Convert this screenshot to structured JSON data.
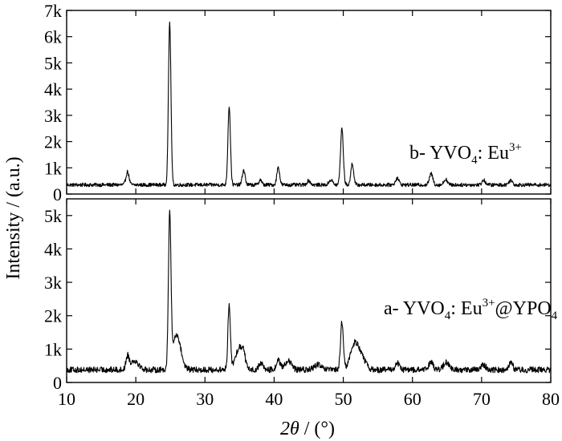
{
  "chart_data": {
    "type": "line",
    "xlabel": {
      "theta": "2θ",
      "rest": " / (°)"
    },
    "ylabel": "Intensity / (a.u.)",
    "xlim": [
      10,
      80
    ],
    "xticks": [
      10,
      20,
      30,
      40,
      50,
      60,
      70,
      80
    ],
    "xtick_labels": [
      "10",
      "20",
      "30",
      "40",
      "50",
      "60",
      "70",
      "80"
    ],
    "panels": [
      {
        "id": "top",
        "ylim": [
          0,
          7000
        ],
        "yticks": [
          0,
          1000,
          2000,
          3000,
          4000,
          5000,
          6000,
          7000
        ],
        "ytick_labels": [
          "0",
          "1k",
          "2k",
          "3k",
          "4k",
          "5k",
          "6k",
          "7k"
        ],
        "annotation": {
          "prefix": "b- YVO",
          "sub1": "4",
          "mid": ": Eu",
          "sup1": "3+",
          "mid2": "",
          "sub2": "",
          "tail": ""
        },
        "series": {
          "name": "b- YVO4: Eu3+",
          "baseline": 350,
          "noise": 70,
          "peaks": [
            {
              "x": 18.8,
              "y": 500,
              "w": 0.22
            },
            {
              "x": 24.9,
              "y": 6200,
              "w": 0.18
            },
            {
              "x": 33.5,
              "y": 3000,
              "w": 0.18
            },
            {
              "x": 35.6,
              "y": 560,
              "w": 0.2
            },
            {
              "x": 38.0,
              "y": 200,
              "w": 0.2
            },
            {
              "x": 40.6,
              "y": 680,
              "w": 0.2
            },
            {
              "x": 45.0,
              "y": 160,
              "w": 0.25
            },
            {
              "x": 48.2,
              "y": 200,
              "w": 0.25
            },
            {
              "x": 49.8,
              "y": 2150,
              "w": 0.2
            },
            {
              "x": 51.3,
              "y": 820,
              "w": 0.2
            },
            {
              "x": 57.8,
              "y": 260,
              "w": 0.25
            },
            {
              "x": 62.7,
              "y": 420,
              "w": 0.25
            },
            {
              "x": 64.8,
              "y": 220,
              "w": 0.25
            },
            {
              "x": 70.3,
              "y": 180,
              "w": 0.25
            },
            {
              "x": 74.2,
              "y": 180,
              "w": 0.25
            }
          ]
        }
      },
      {
        "id": "bottom",
        "ylim": [
          0,
          5500
        ],
        "yticks": [
          0,
          1000,
          2000,
          3000,
          4000,
          5000
        ],
        "ytick_labels": [
          "0",
          "1k",
          "2k",
          "3k",
          "4k",
          "5k"
        ],
        "annotation": {
          "prefix": "a- YVO",
          "sub1": "4",
          "mid": ": Eu",
          "sup1": "3+",
          "mid2": "@YPO",
          "sub2": "4",
          "tail": ""
        },
        "series": {
          "name": "a- YVO4: Eu3+@YPO4",
          "baseline": 380,
          "noise": 90,
          "peaks": [
            {
              "x": 18.8,
              "y": 380,
              "w": 0.22
            },
            {
              "x": 19.8,
              "y": 280,
              "w": 0.6
            },
            {
              "x": 24.9,
              "y": 4500,
              "w": 0.18
            },
            {
              "x": 25.9,
              "y": 1050,
              "w": 0.6
            },
            {
              "x": 33.5,
              "y": 1950,
              "w": 0.18
            },
            {
              "x": 35.0,
              "y": 680,
              "w": 0.55
            },
            {
              "x": 35.6,
              "y": 300,
              "w": 0.2
            },
            {
              "x": 38.1,
              "y": 200,
              "w": 0.3
            },
            {
              "x": 40.6,
              "y": 300,
              "w": 0.25
            },
            {
              "x": 42.0,
              "y": 260,
              "w": 0.5
            },
            {
              "x": 46.3,
              "y": 150,
              "w": 0.5
            },
            {
              "x": 49.8,
              "y": 1420,
              "w": 0.2
            },
            {
              "x": 51.6,
              "y": 720,
              "w": 0.6
            },
            {
              "x": 52.6,
              "y": 350,
              "w": 0.6
            },
            {
              "x": 57.8,
              "y": 200,
              "w": 0.3
            },
            {
              "x": 62.7,
              "y": 260,
              "w": 0.3
            },
            {
              "x": 64.9,
              "y": 220,
              "w": 0.4
            },
            {
              "x": 70.3,
              "y": 160,
              "w": 0.3
            },
            {
              "x": 74.2,
              "y": 220,
              "w": 0.3
            }
          ]
        }
      }
    ]
  }
}
